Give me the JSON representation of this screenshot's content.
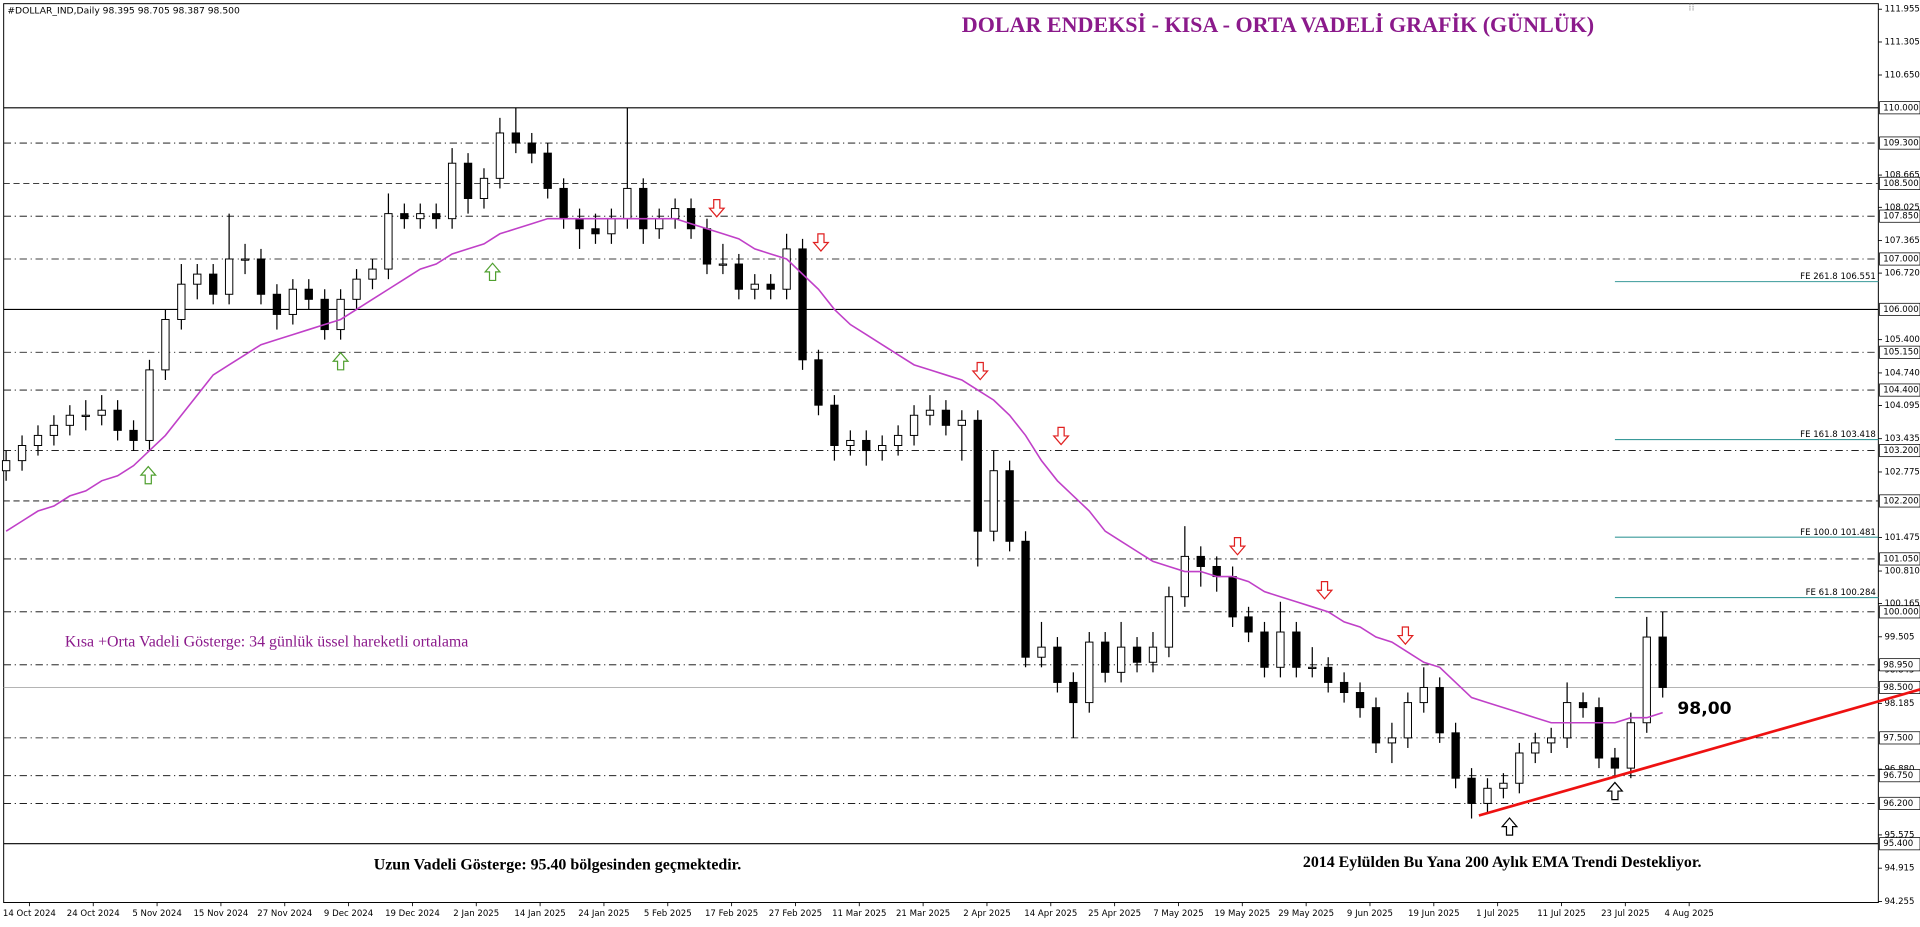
{
  "chart_data": {
    "type": "candlestick",
    "symbol": "#DOLLAR_IND,Daily  98.395 98.705 98.387 98.500",
    "title": "DOLAR ENDEKSİ - KISA - ORTA VADELİ GRAFİK (GÜNLÜK)",
    "ema_note": "Kısa +Orta Vadeli Gösterge: 34 günlük üssel hareketli ortalama",
    "ema_level_label": "98,00",
    "long_term_note": "Uzun Vadeli Gösterge: 95.40 bölgesinden geçmektedir.",
    "trend_note": "2014 Eylülden Bu Yana 200 Aylık EMA Trendi Destekliyor.",
    "categories": [
      "14 Oct 2024",
      "24 Oct 2024",
      "5 Nov 2024",
      "15 Nov 2024",
      "27 Nov 2024",
      "9 Dec 2024",
      "19 Dec 2024",
      "2 Jan 2025",
      "14 Jan 2025",
      "24 Jan 2025",
      "5 Feb 2025",
      "17 Feb 2025",
      "27 Feb 2025",
      "11 Mar 2025",
      "21 Mar 2025",
      "2 Apr 2025",
      "14 Apr 2025",
      "25 Apr 2025",
      "7 May 2025",
      "19 May 2025",
      "29 May 2025",
      "9 Jun 2025",
      "19 Jun 2025",
      "1 Jul 2025",
      "11 Jul 2025",
      "23 Jul 2025",
      "4 Aug 2025"
    ],
    "ylim": [
      94.234,
      112.065
    ],
    "yticks": [
      111.955,
      111.305,
      {
        "value": 110.65,
        "label": "110.650"
      },
      108.665,
      108.025,
      107.365,
      {
        "value": 106.72,
        "label": "106.720"
      },
      {
        "value": 105.4,
        "label": "105.400"
      },
      {
        "value": 104.74,
        "label": "104.740"
      },
      104.095,
      103.435,
      102.775,
      101.475,
      {
        "value": 100.81,
        "label": "100.810"
      },
      100.165,
      99.505,
      98.845,
      98.185,
      {
        "value": 96.88,
        "label": "96.880"
      },
      95.575,
      94.915,
      94.255
    ],
    "levels": [
      {
        "value": 110,
        "label": "110.000",
        "style": "solid"
      },
      {
        "value": 109.3,
        "label": "109.300",
        "style": "dashdot"
      },
      {
        "value": 108.5,
        "label": "108.500",
        "style": "dashed"
      },
      {
        "value": 107.85,
        "label": "107.850",
        "style": "dashdot"
      },
      {
        "value": 107,
        "label": "107.000",
        "style": "dashdot"
      },
      {
        "value": 106,
        "label": "106.000",
        "style": "solid"
      },
      {
        "value": 105.15,
        "label": "105.150",
        "style": "dashdot"
      },
      {
        "value": 104.4,
        "label": "104.400",
        "style": "dashdot"
      },
      {
        "value": 103.2,
        "label": "103.200",
        "style": "dashdot"
      },
      {
        "value": 102.2,
        "label": "102.200",
        "style": "dashed"
      },
      {
        "value": 101.05,
        "label": "101.050",
        "style": "dashdot"
      },
      {
        "value": 100,
        "label": "100.000",
        "style": "dashdot"
      },
      {
        "value": 98.95,
        "label": "98.950",
        "style": "dashdot"
      },
      {
        "value": 98.5,
        "label": "98.500",
        "style": "current"
      },
      {
        "value": 97.5,
        "label": "97.500",
        "style": "dashdot"
      },
      {
        "value": 96.75,
        "label": "96.750",
        "style": "dashdot"
      },
      {
        "value": 96.2,
        "label": "96.200",
        "style": "dashdot"
      },
      {
        "value": 95.4,
        "label": "95.400",
        "style": "solid"
      }
    ],
    "fibo": {
      "color": "#3a9a9a",
      "lines": [
        {
          "value": 106.551,
          "label": "FE 261.8 106.551"
        },
        {
          "value": 103.418,
          "label": "FE 161.8 103.418"
        },
        {
          "value": 101.481,
          "label": "FE 100.0 101.481"
        },
        {
          "value": 100.284,
          "label": "FE 61.8 100.284"
        }
      ]
    },
    "trendline": {
      "color": "#ee1111",
      "values": [
        95.96,
        98.46
      ]
    },
    "ema": {
      "color": "#c040c8",
      "values": [
        101.6,
        101.8,
        102.0,
        102.1,
        102.3,
        102.4,
        102.6,
        102.7,
        102.9,
        103.2,
        103.5,
        103.9,
        104.3,
        104.7,
        104.9,
        105.1,
        105.3,
        105.4,
        105.5,
        105.6,
        105.7,
        105.8,
        106.0,
        106.2,
        106.4,
        106.6,
        106.8,
        106.9,
        107.1,
        107.2,
        107.3,
        107.5,
        107.6,
        107.7,
        107.8,
        107.8,
        107.8,
        107.8,
        107.8,
        107.8,
        107.8,
        107.8,
        107.8,
        107.7,
        107.6,
        107.5,
        107.4,
        107.2,
        107.1,
        107.0,
        106.7,
        106.4,
        106.0,
        105.7,
        105.5,
        105.3,
        105.1,
        104.9,
        104.8,
        104.7,
        104.6,
        104.4,
        104.2,
        103.9,
        103.5,
        103.0,
        102.6,
        102.3,
        102.0,
        101.6,
        101.4,
        101.2,
        101.0,
        100.9,
        100.8,
        100.8,
        100.7,
        100.7,
        100.6,
        100.4,
        100.3,
        100.2,
        100.1,
        100.0,
        99.8,
        99.7,
        99.5,
        99.4,
        99.2,
        99.0,
        98.9,
        98.6,
        98.3,
        98.2,
        98.1,
        98.0,
        97.9,
        97.8,
        97.8,
        97.8,
        97.8,
        97.8,
        97.9,
        97.9,
        98.0
      ]
    },
    "candles": [
      [
        102.8,
        103.2,
        102.6,
        103.0
      ],
      [
        103.0,
        103.5,
        102.8,
        103.3
      ],
      [
        103.3,
        103.7,
        103.1,
        103.5
      ],
      [
        103.5,
        103.9,
        103.3,
        103.7
      ],
      [
        103.7,
        104.1,
        103.5,
        103.9
      ],
      [
        103.9,
        104.2,
        103.6,
        103.9
      ],
      [
        103.9,
        104.3,
        103.7,
        104.0
      ],
      [
        104.0,
        104.2,
        103.4,
        103.6
      ],
      [
        103.6,
        103.8,
        103.2,
        103.4
      ],
      [
        103.4,
        105.0,
        103.2,
        104.8
      ],
      [
        104.8,
        106.0,
        104.6,
        105.8
      ],
      [
        105.8,
        106.9,
        105.6,
        106.5
      ],
      [
        106.5,
        106.9,
        106.2,
        106.7
      ],
      [
        106.7,
        106.9,
        106.1,
        106.3
      ],
      [
        106.3,
        107.9,
        106.1,
        107.0
      ],
      [
        107.0,
        107.3,
        106.7,
        107.0
      ],
      [
        107.0,
        107.2,
        106.1,
        106.3
      ],
      [
        106.3,
        106.5,
        105.6,
        105.9
      ],
      [
        105.9,
        106.6,
        105.7,
        106.4
      ],
      [
        106.4,
        106.6,
        106.0,
        106.2
      ],
      [
        106.2,
        106.4,
        105.4,
        105.6
      ],
      [
        105.6,
        106.4,
        105.4,
        106.2
      ],
      [
        106.2,
        106.8,
        106.0,
        106.6
      ],
      [
        106.6,
        107.0,
        106.4,
        106.8
      ],
      [
        106.8,
        108.3,
        106.6,
        107.9
      ],
      [
        107.9,
        108.1,
        107.6,
        107.8
      ],
      [
        107.8,
        108.1,
        107.6,
        107.9
      ],
      [
        107.9,
        108.1,
        107.6,
        107.8
      ],
      [
        107.8,
        109.2,
        107.6,
        108.9
      ],
      [
        108.9,
        109.1,
        107.9,
        108.2
      ],
      [
        108.2,
        108.8,
        108.0,
        108.6
      ],
      [
        108.6,
        109.8,
        108.4,
        109.5
      ],
      [
        109.5,
        110.0,
        109.1,
        109.3
      ],
      [
        109.3,
        109.5,
        108.9,
        109.1
      ],
      [
        109.1,
        109.3,
        108.2,
        108.4
      ],
      [
        108.4,
        108.6,
        107.6,
        107.8
      ],
      [
        107.8,
        108.0,
        107.2,
        107.6
      ],
      [
        107.6,
        107.9,
        107.3,
        107.5
      ],
      [
        107.5,
        108.0,
        107.3,
        107.8
      ],
      [
        107.8,
        110.0,
        107.6,
        108.4
      ],
      [
        108.4,
        108.6,
        107.3,
        107.6
      ],
      [
        107.6,
        108.0,
        107.4,
        107.8
      ],
      [
        107.8,
        108.2,
        107.6,
        108.0
      ],
      [
        108.0,
        108.2,
        107.4,
        107.6
      ],
      [
        107.6,
        107.8,
        106.7,
        106.9
      ],
      [
        106.9,
        107.3,
        106.7,
        106.9
      ],
      [
        106.9,
        107.1,
        106.2,
        106.4
      ],
      [
        106.4,
        106.7,
        106.2,
        106.5
      ],
      [
        106.5,
        106.7,
        106.2,
        106.4
      ],
      [
        106.4,
        107.5,
        106.2,
        107.2
      ],
      [
        107.2,
        107.4,
        104.8,
        105.0
      ],
      [
        105.0,
        105.2,
        103.9,
        104.1
      ],
      [
        104.1,
        104.3,
        103.0,
        103.3
      ],
      [
        103.3,
        103.6,
        103.1,
        103.4
      ],
      [
        103.4,
        103.6,
        102.9,
        103.2
      ],
      [
        103.2,
        103.5,
        103.0,
        103.3
      ],
      [
        103.3,
        103.7,
        103.1,
        103.5
      ],
      [
        103.5,
        104.1,
        103.3,
        103.9
      ],
      [
        103.9,
        104.3,
        103.7,
        104.0
      ],
      [
        104.0,
        104.2,
        103.5,
        103.7
      ],
      [
        103.7,
        104.0,
        103.0,
        103.8
      ],
      [
        103.8,
        104.0,
        100.9,
        101.6
      ],
      [
        101.6,
        103.2,
        101.4,
        102.8
      ],
      [
        102.8,
        103.0,
        101.2,
        101.4
      ],
      [
        101.4,
        101.6,
        98.9,
        99.1
      ],
      [
        99.1,
        99.8,
        98.9,
        99.3
      ],
      [
        99.3,
        99.5,
        98.4,
        98.6
      ],
      [
        98.6,
        98.8,
        97.5,
        98.2
      ],
      [
        98.2,
        99.6,
        98.0,
        99.4
      ],
      [
        99.4,
        99.6,
        98.6,
        98.8
      ],
      [
        98.8,
        99.8,
        98.6,
        99.3
      ],
      [
        99.3,
        99.5,
        98.8,
        99.0
      ],
      [
        99.0,
        99.6,
        98.8,
        99.3
      ],
      [
        99.3,
        100.5,
        99.1,
        100.3
      ],
      [
        100.3,
        101.7,
        100.1,
        101.1
      ],
      [
        101.1,
        101.3,
        100.5,
        100.9
      ],
      [
        100.9,
        101.1,
        100.4,
        100.7
      ],
      [
        100.7,
        100.9,
        99.7,
        99.9
      ],
      [
        99.9,
        100.1,
        99.4,
        99.6
      ],
      [
        99.6,
        99.8,
        98.7,
        98.9
      ],
      [
        98.9,
        100.2,
        98.7,
        99.6
      ],
      [
        99.6,
        99.8,
        98.7,
        98.9
      ],
      [
        98.9,
        99.3,
        98.7,
        98.9
      ],
      [
        98.9,
        99.1,
        98.4,
        98.6
      ],
      [
        98.6,
        98.8,
        98.2,
        98.4
      ],
      [
        98.4,
        98.6,
        97.9,
        98.1
      ],
      [
        98.1,
        98.3,
        97.2,
        97.4
      ],
      [
        97.4,
        97.8,
        97.0,
        97.5
      ],
      [
        97.5,
        98.4,
        97.3,
        98.2
      ],
      [
        98.2,
        98.9,
        98.0,
        98.5
      ],
      [
        98.5,
        98.7,
        97.4,
        97.6
      ],
      [
        97.6,
        97.8,
        96.5,
        96.7
      ],
      [
        96.7,
        96.9,
        95.9,
        96.2
      ],
      [
        96.2,
        96.7,
        96.0,
        96.5
      ],
      [
        96.5,
        96.8,
        96.3,
        96.6
      ],
      [
        96.6,
        97.4,
        96.4,
        97.2
      ],
      [
        97.2,
        97.6,
        97.0,
        97.4
      ],
      [
        97.4,
        97.7,
        97.2,
        97.5
      ],
      [
        97.5,
        98.6,
        97.3,
        98.2
      ],
      [
        98.2,
        98.4,
        97.9,
        98.1
      ],
      [
        98.1,
        98.3,
        96.9,
        97.1
      ],
      [
        97.1,
        97.3,
        96.7,
        96.9
      ],
      [
        96.9,
        98.0,
        96.7,
        97.8
      ],
      [
        97.8,
        99.9,
        97.6,
        99.5
      ],
      [
        99.5,
        100.0,
        98.3,
        98.5
      ]
    ]
  }
}
